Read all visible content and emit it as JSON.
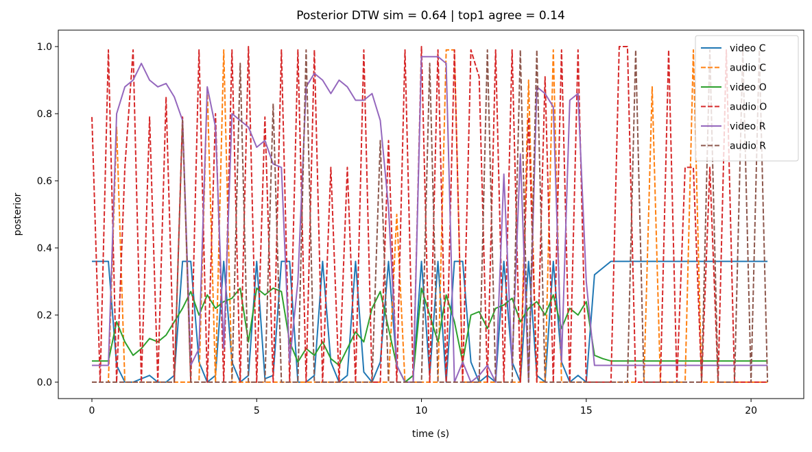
{
  "chart_data": {
    "type": "line",
    "title": "Posterior DTW sim = 0.64  |  top1 agree = 0.14",
    "x_label": "time (s)",
    "y_label": "posterior",
    "xlim": [
      -1.02,
      21.6
    ],
    "ylim": [
      -0.049,
      1.049
    ],
    "xticks": [
      0,
      5,
      10,
      15,
      20
    ],
    "yticks": [
      {
        "value": 0,
        "label": "0.0"
      },
      0.2,
      0.4,
      0.6,
      0.8,
      {
        "value": 1,
        "label": "1.0"
      }
    ],
    "legend": "upper right",
    "x": [
      0,
      0.25,
      0.5,
      0.75,
      1,
      1.25,
      1.5,
      1.75,
      2,
      2.25,
      2.5,
      2.75,
      3,
      3.25,
      3.5,
      3.75,
      4,
      4.25,
      4.5,
      4.75,
      5,
      5.25,
      5.5,
      5.75,
      6,
      6.25,
      6.5,
      6.75,
      7,
      7.25,
      7.5,
      7.75,
      8,
      8.25,
      8.5,
      8.75,
      9,
      9.25,
      9.5,
      9.75,
      10,
      10.25,
      10.5,
      10.75,
      11,
      11.25,
      11.5,
      11.75,
      12,
      12.25,
      12.5,
      12.75,
      13,
      13.25,
      13.5,
      13.75,
      14,
      14.25,
      14.5,
      14.75,
      15,
      15.25,
      15.5,
      15.75,
      16,
      16.25,
      16.5,
      16.75,
      17,
      17.25,
      17.5,
      17.75,
      18,
      18.25,
      18.5,
      18.75,
      19,
      19.25,
      19.5,
      19.75,
      20,
      20.25,
      20.5
    ],
    "series": [
      {
        "name": "video C",
        "color": "#1f77b4",
        "linestyle": "solid",
        "values": [
          0.36,
          0.36,
          0.36,
          0.05,
          0.0,
          0.0,
          0.01,
          0.02,
          0.0,
          0.0,
          0.02,
          0.36,
          0.36,
          0.06,
          0.0,
          0.02,
          0.36,
          0.06,
          0.0,
          0.02,
          0.36,
          0.01,
          0.02,
          0.36,
          0.36,
          0.0,
          0.0,
          0.02,
          0.36,
          0.06,
          0.0,
          0.02,
          0.36,
          0.03,
          0.0,
          0.06,
          0.36,
          0.05,
          0.0,
          0.02,
          0.36,
          0.02,
          0.36,
          0.0,
          0.36,
          0.36,
          0.06,
          0.0,
          0.02,
          0.0,
          0.36,
          0.06,
          0.0,
          0.36,
          0.02,
          0.0,
          0.36,
          0.06,
          0.0,
          0.02,
          0.0,
          0.32,
          0.34,
          0.36,
          0.36,
          0.36,
          0.36,
          0.36,
          0.36,
          0.36,
          0.36,
          0.36,
          0.36,
          0.36,
          0.36,
          0.36,
          0.36,
          0.36,
          0.36,
          0.36,
          0.36,
          0.36,
          0.36
        ]
      },
      {
        "name": "audio C",
        "color": "#ff7f0e",
        "linestyle": "dashed",
        "values": [
          0,
          0,
          0,
          0.76,
          0,
          0,
          0,
          0,
          0,
          0,
          0,
          0,
          0,
          0,
          0.88,
          0,
          0.99,
          0,
          0,
          0,
          0,
          0,
          0,
          0,
          0,
          0,
          0,
          0,
          0,
          0,
          0,
          0,
          0,
          0,
          0,
          0,
          0,
          0.5,
          0,
          0,
          0,
          0,
          0,
          0.99,
          0.99,
          0,
          0,
          0,
          0,
          0,
          0,
          0,
          0,
          0.9,
          0,
          0,
          0.99,
          0,
          0,
          0,
          0,
          0,
          0,
          0,
          0,
          0,
          0,
          0,
          0.88,
          0,
          0,
          0,
          0,
          0.99,
          0,
          0,
          0,
          0,
          0,
          0,
          0,
          0,
          0
        ]
      },
      {
        "name": "video O",
        "color": "#2ca02c",
        "linestyle": "solid",
        "values": [
          0.063,
          0.063,
          0.063,
          0.18,
          0.12,
          0.08,
          0.1,
          0.13,
          0.12,
          0.14,
          0.18,
          0.22,
          0.27,
          0.2,
          0.26,
          0.22,
          0.24,
          0.25,
          0.28,
          0.12,
          0.28,
          0.26,
          0.28,
          0.27,
          0.12,
          0.06,
          0.1,
          0.08,
          0.12,
          0.07,
          0.05,
          0.1,
          0.15,
          0.12,
          0.22,
          0.27,
          0.16,
          0.05,
          0.0,
          0.02,
          0.28,
          0.2,
          0.12,
          0.26,
          0.18,
          0.06,
          0.2,
          0.21,
          0.16,
          0.22,
          0.23,
          0.25,
          0.18,
          0.22,
          0.24,
          0.2,
          0.26,
          0.16,
          0.22,
          0.2,
          0.24,
          0.08,
          0.07,
          0.063,
          0.063,
          0.063,
          0.063,
          0.063,
          0.063,
          0.063,
          0.063,
          0.063,
          0.063,
          0.063,
          0.063,
          0.063,
          0.063,
          0.063,
          0.063,
          0.063,
          0.063,
          0.063,
          0.063
        ]
      },
      {
        "name": "audio O",
        "color": "#d62728",
        "linestyle": "dashed",
        "values": [
          0.79,
          0.0,
          0.99,
          0.0,
          0.64,
          0.99,
          0.0,
          0.79,
          0.0,
          0.85,
          0.0,
          0.79,
          0.0,
          0.99,
          0.0,
          0.8,
          0.0,
          0.99,
          0.0,
          1.0,
          0.0,
          0.79,
          0.0,
          0.99,
          0.0,
          0.99,
          0.0,
          0.99,
          0.0,
          0.64,
          0.0,
          0.64,
          0.0,
          0.99,
          0.0,
          0.0,
          0.72,
          0.0,
          0.99,
          0.0,
          1.0,
          0.0,
          0.99,
          0.0,
          0.99,
          0.0,
          0.99,
          0.91,
          0.0,
          0.99,
          0.0,
          0.99,
          0.0,
          0.79,
          0.0,
          0.91,
          0.0,
          0.99,
          0.0,
          0.99,
          0.0,
          0.0,
          0.0,
          0.0,
          1.0,
          1.0,
          0.0,
          0.0,
          0.0,
          0.0,
          0.99,
          0.0,
          0.64,
          0.64,
          0.0,
          0.64,
          0.0,
          0.99,
          0.0,
          0.0,
          0.0,
          0.0,
          0.0
        ]
      },
      {
        "name": "video R",
        "color": "#9467bd",
        "linestyle": "solid",
        "values": [
          0.05,
          0.05,
          0.05,
          0.8,
          0.88,
          0.9,
          0.95,
          0.9,
          0.88,
          0.89,
          0.85,
          0.78,
          0.05,
          0.1,
          0.88,
          0.76,
          0.1,
          0.8,
          0.78,
          0.76,
          0.7,
          0.72,
          0.65,
          0.64,
          0.06,
          0.3,
          0.88,
          0.92,
          0.9,
          0.86,
          0.9,
          0.88,
          0.84,
          0.84,
          0.86,
          0.78,
          0.52,
          0.05,
          0.0,
          0.0,
          0.97,
          0.97,
          0.97,
          0.95,
          0.0,
          0.06,
          0.0,
          0.02,
          0.05,
          0.0,
          0.62,
          0.05,
          0.68,
          0.0,
          0.88,
          0.86,
          0.82,
          0.06,
          0.84,
          0.86,
          0.3,
          0.05,
          0.05,
          0.05,
          0.05,
          0.05,
          0.05,
          0.05,
          0.05,
          0.05,
          0.05,
          0.05,
          0.05,
          0.05,
          0.05,
          0.05,
          0.05,
          0.05,
          0.05,
          0.05,
          0.05,
          0.05,
          0.05
        ]
      },
      {
        "name": "audio R",
        "color": "#8c564b",
        "linestyle": "dashed",
        "values": [
          0,
          0,
          0,
          0,
          0,
          0,
          0,
          0,
          0,
          0,
          0,
          0.78,
          0,
          0,
          0,
          0,
          0,
          0,
          0.95,
          0,
          0,
          0,
          0.83,
          0,
          0,
          0,
          0.99,
          0,
          0,
          0,
          0,
          0,
          0,
          0,
          0,
          0.72,
          0,
          0,
          0,
          0,
          0,
          0.95,
          0,
          0,
          0,
          0,
          0,
          0,
          0.99,
          0,
          0,
          0,
          0.99,
          0,
          0.99,
          0,
          0,
          0,
          0,
          0,
          0,
          0,
          0,
          0,
          0,
          0,
          0.99,
          0,
          0,
          0,
          0,
          0,
          0,
          0,
          0,
          0.99,
          0,
          0,
          0,
          0.99,
          0,
          0.99,
          0
        ]
      }
    ]
  }
}
